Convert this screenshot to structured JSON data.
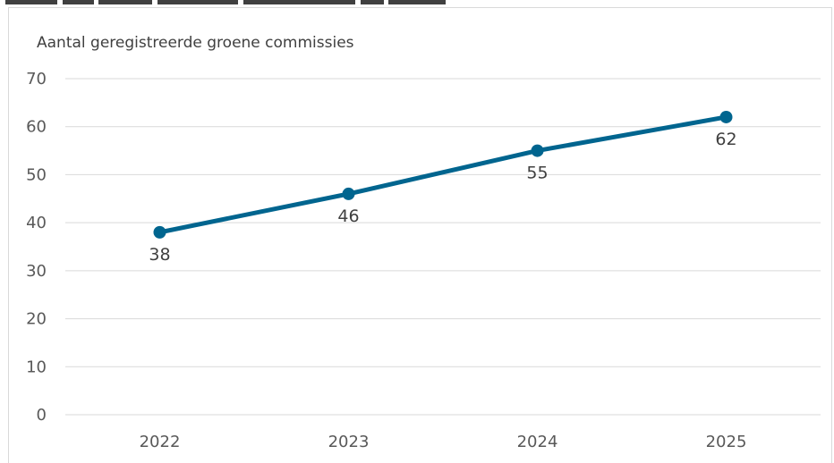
{
  "chart_data": {
    "type": "line",
    "title": "Aantal geregistreerde groene commissies",
    "categories": [
      "2022",
      "2023",
      "2024",
      "2025"
    ],
    "series": [
      {
        "values": [
          38,
          46,
          55,
          62
        ],
        "data_labels": [
          "38",
          "46",
          "55",
          "62"
        ]
      }
    ],
    "ylim": [
      0,
      70
    ],
    "yticks": [
      "0",
      "10",
      "20",
      "30",
      "40",
      "50",
      "60",
      "70"
    ],
    "grid": "horizontal",
    "legend": "none",
    "colors": {
      "line": "#00658f",
      "grid": "#d9d9d9",
      "text": "#595959"
    }
  }
}
